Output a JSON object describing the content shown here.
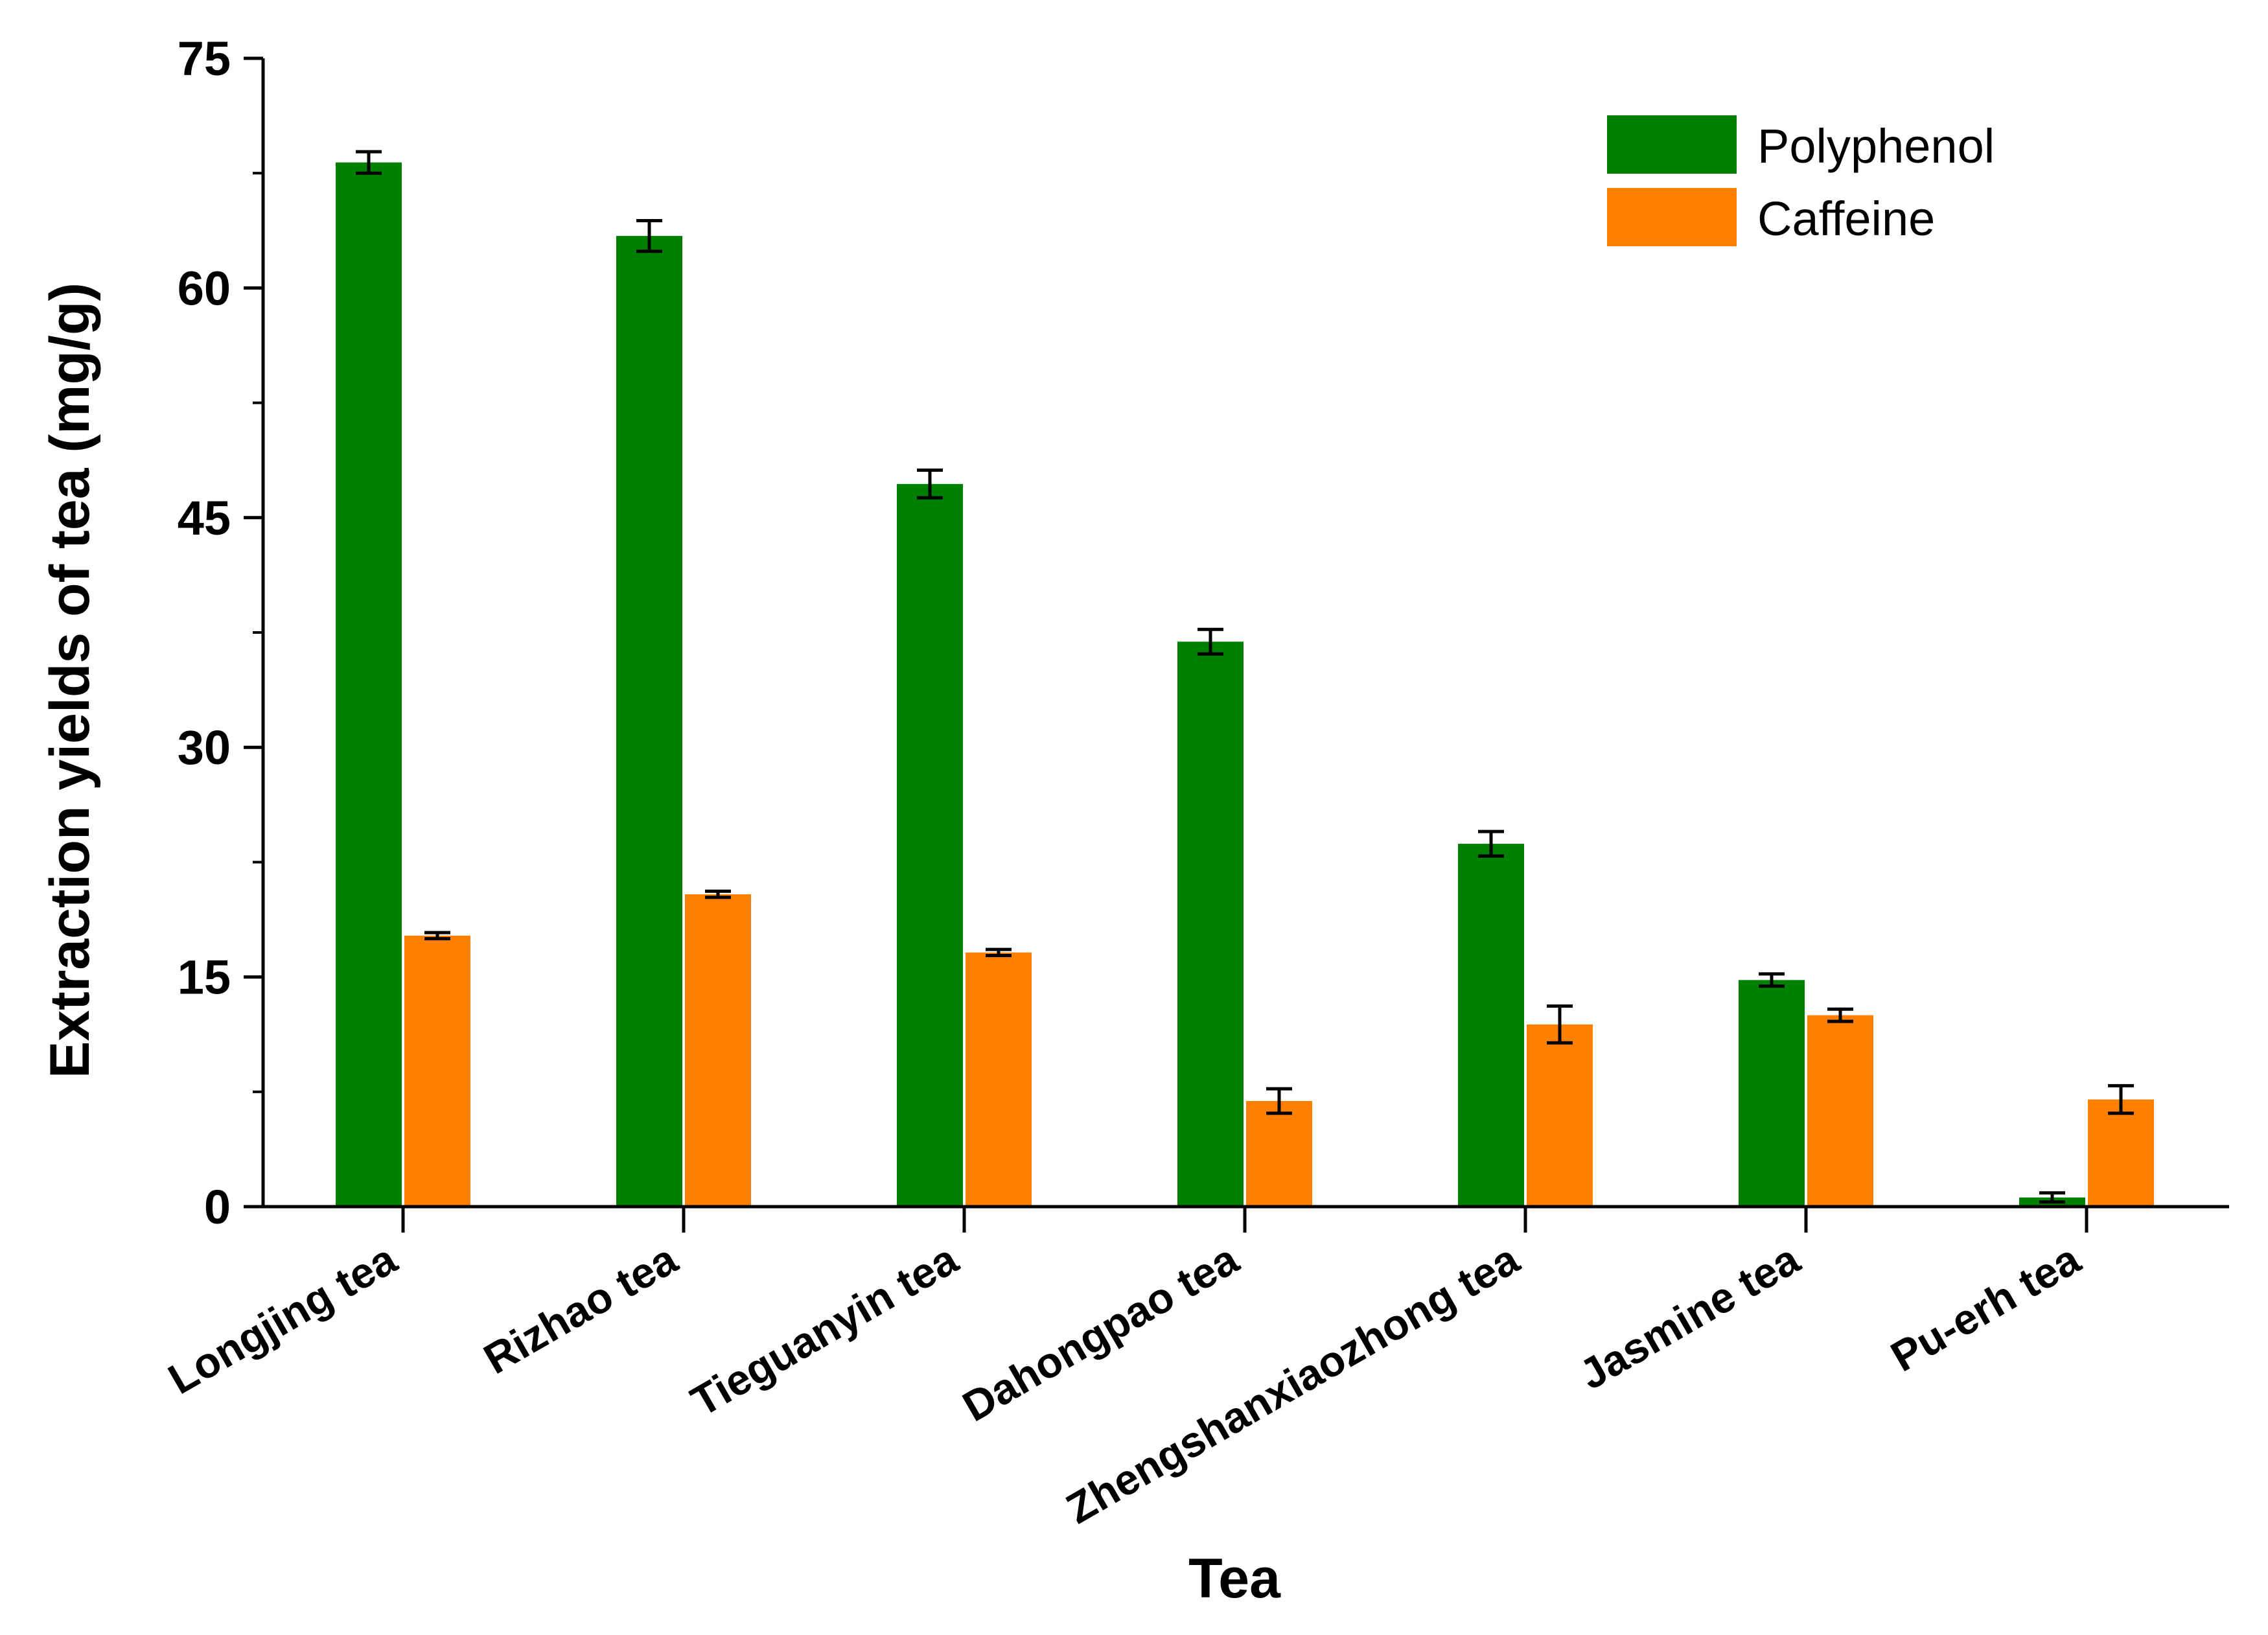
{
  "chart_data": {
    "type": "bar",
    "title": "",
    "xlabel": "Tea",
    "ylabel": "Extraction yields of tea (mg/g)",
    "ylim": [
      0,
      75
    ],
    "yticks": [
      0,
      15,
      30,
      45,
      60,
      75
    ],
    "grid": false,
    "legend_position": "top-right",
    "categories": [
      "Longjing tea",
      "Rizhao tea",
      "Tieguanyin tea",
      "Dahongpao tea",
      "Zhengshanxiaozhong tea",
      "Jasmine tea",
      "Pu-erh tea"
    ],
    "series": [
      {
        "name": "Polyphenol",
        "color": "#008000",
        "values": [
          68.2,
          63.4,
          47.2,
          36.9,
          23.7,
          14.8,
          0.6
        ],
        "errors": [
          0.7,
          1.0,
          0.9,
          0.8,
          0.8,
          0.4,
          0.3
        ]
      },
      {
        "name": "Caffeine",
        "color": "#ff8000",
        "values": [
          17.7,
          20.4,
          16.6,
          6.9,
          11.9,
          12.5,
          7.0
        ],
        "errors": [
          0.2,
          0.2,
          0.2,
          0.8,
          1.2,
          0.4,
          0.9
        ]
      }
    ]
  }
}
